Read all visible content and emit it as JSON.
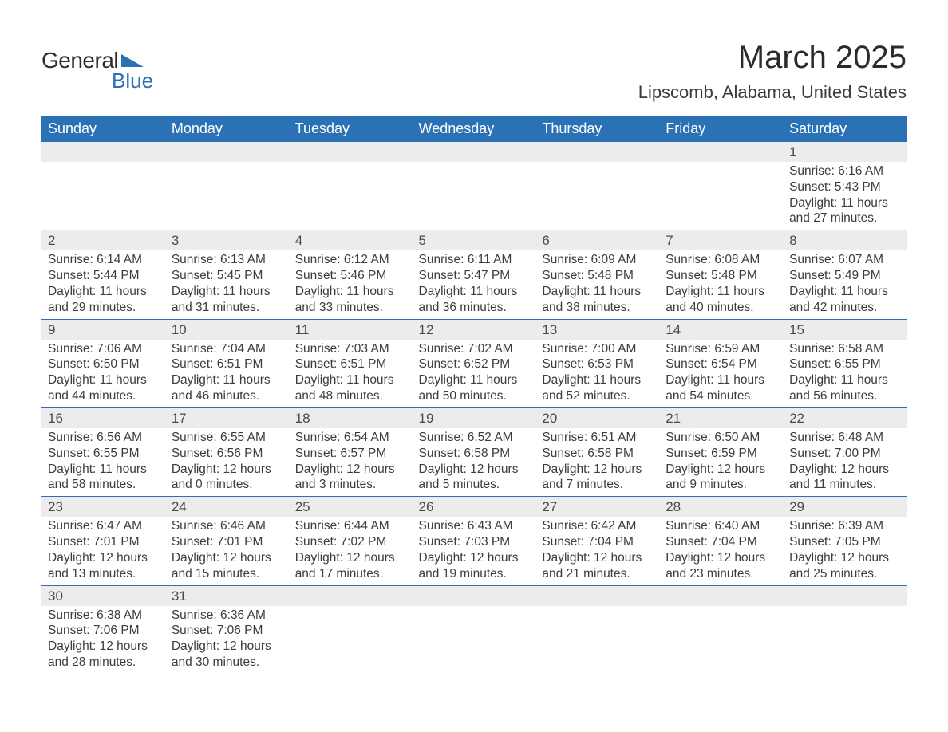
{
  "logo": {
    "general": "General",
    "blue": "Blue",
    "triangle_color": "#2a72b5"
  },
  "header": {
    "title": "March 2025",
    "location": "Lipscomb, Alabama, United States"
  },
  "style": {
    "header_bg": "#2a72b5",
    "header_fg": "#ffffff",
    "date_bg": "#ececec",
    "date_border": "#2a72b5",
    "text_color": "#3c3c3c",
    "title_font_size": 40,
    "location_font_size": 22,
    "dayhead_font_size": 18,
    "detail_font_size": 15.5
  },
  "weekdays": [
    "Sunday",
    "Monday",
    "Tuesday",
    "Wednesday",
    "Thursday",
    "Friday",
    "Saturday"
  ],
  "weeks": [
    [
      null,
      null,
      null,
      null,
      null,
      null,
      {
        "date": "1",
        "sunrise": "6:16 AM",
        "sunset": "5:43 PM",
        "daylight": "11 hours and 27 minutes."
      }
    ],
    [
      {
        "date": "2",
        "sunrise": "6:14 AM",
        "sunset": "5:44 PM",
        "daylight": "11 hours and 29 minutes."
      },
      {
        "date": "3",
        "sunrise": "6:13 AM",
        "sunset": "5:45 PM",
        "daylight": "11 hours and 31 minutes."
      },
      {
        "date": "4",
        "sunrise": "6:12 AM",
        "sunset": "5:46 PM",
        "daylight": "11 hours and 33 minutes."
      },
      {
        "date": "5",
        "sunrise": "6:11 AM",
        "sunset": "5:47 PM",
        "daylight": "11 hours and 36 minutes."
      },
      {
        "date": "6",
        "sunrise": "6:09 AM",
        "sunset": "5:48 PM",
        "daylight": "11 hours and 38 minutes."
      },
      {
        "date": "7",
        "sunrise": "6:08 AM",
        "sunset": "5:48 PM",
        "daylight": "11 hours and 40 minutes."
      },
      {
        "date": "8",
        "sunrise": "6:07 AM",
        "sunset": "5:49 PM",
        "daylight": "11 hours and 42 minutes."
      }
    ],
    [
      {
        "date": "9",
        "sunrise": "7:06 AM",
        "sunset": "6:50 PM",
        "daylight": "11 hours and 44 minutes."
      },
      {
        "date": "10",
        "sunrise": "7:04 AM",
        "sunset": "6:51 PM",
        "daylight": "11 hours and 46 minutes."
      },
      {
        "date": "11",
        "sunrise": "7:03 AM",
        "sunset": "6:51 PM",
        "daylight": "11 hours and 48 minutes."
      },
      {
        "date": "12",
        "sunrise": "7:02 AM",
        "sunset": "6:52 PM",
        "daylight": "11 hours and 50 minutes."
      },
      {
        "date": "13",
        "sunrise": "7:00 AM",
        "sunset": "6:53 PM",
        "daylight": "11 hours and 52 minutes."
      },
      {
        "date": "14",
        "sunrise": "6:59 AM",
        "sunset": "6:54 PM",
        "daylight": "11 hours and 54 minutes."
      },
      {
        "date": "15",
        "sunrise": "6:58 AM",
        "sunset": "6:55 PM",
        "daylight": "11 hours and 56 minutes."
      }
    ],
    [
      {
        "date": "16",
        "sunrise": "6:56 AM",
        "sunset": "6:55 PM",
        "daylight": "11 hours and 58 minutes."
      },
      {
        "date": "17",
        "sunrise": "6:55 AM",
        "sunset": "6:56 PM",
        "daylight": "12 hours and 0 minutes."
      },
      {
        "date": "18",
        "sunrise": "6:54 AM",
        "sunset": "6:57 PM",
        "daylight": "12 hours and 3 minutes."
      },
      {
        "date": "19",
        "sunrise": "6:52 AM",
        "sunset": "6:58 PM",
        "daylight": "12 hours and 5 minutes."
      },
      {
        "date": "20",
        "sunrise": "6:51 AM",
        "sunset": "6:58 PM",
        "daylight": "12 hours and 7 minutes."
      },
      {
        "date": "21",
        "sunrise": "6:50 AM",
        "sunset": "6:59 PM",
        "daylight": "12 hours and 9 minutes."
      },
      {
        "date": "22",
        "sunrise": "6:48 AM",
        "sunset": "7:00 PM",
        "daylight": "12 hours and 11 minutes."
      }
    ],
    [
      {
        "date": "23",
        "sunrise": "6:47 AM",
        "sunset": "7:01 PM",
        "daylight": "12 hours and 13 minutes."
      },
      {
        "date": "24",
        "sunrise": "6:46 AM",
        "sunset": "7:01 PM",
        "daylight": "12 hours and 15 minutes."
      },
      {
        "date": "25",
        "sunrise": "6:44 AM",
        "sunset": "7:02 PM",
        "daylight": "12 hours and 17 minutes."
      },
      {
        "date": "26",
        "sunrise": "6:43 AM",
        "sunset": "7:03 PM",
        "daylight": "12 hours and 19 minutes."
      },
      {
        "date": "27",
        "sunrise": "6:42 AM",
        "sunset": "7:04 PM",
        "daylight": "12 hours and 21 minutes."
      },
      {
        "date": "28",
        "sunrise": "6:40 AM",
        "sunset": "7:04 PM",
        "daylight": "12 hours and 23 minutes."
      },
      {
        "date": "29",
        "sunrise": "6:39 AM",
        "sunset": "7:05 PM",
        "daylight": "12 hours and 25 minutes."
      }
    ],
    [
      {
        "date": "30",
        "sunrise": "6:38 AM",
        "sunset": "7:06 PM",
        "daylight": "12 hours and 28 minutes."
      },
      {
        "date": "31",
        "sunrise": "6:36 AM",
        "sunset": "7:06 PM",
        "daylight": "12 hours and 30 minutes."
      },
      null,
      null,
      null,
      null,
      null
    ]
  ],
  "labels": {
    "sunrise_prefix": "Sunrise: ",
    "sunset_prefix": "Sunset: ",
    "daylight_prefix": "Daylight: "
  }
}
